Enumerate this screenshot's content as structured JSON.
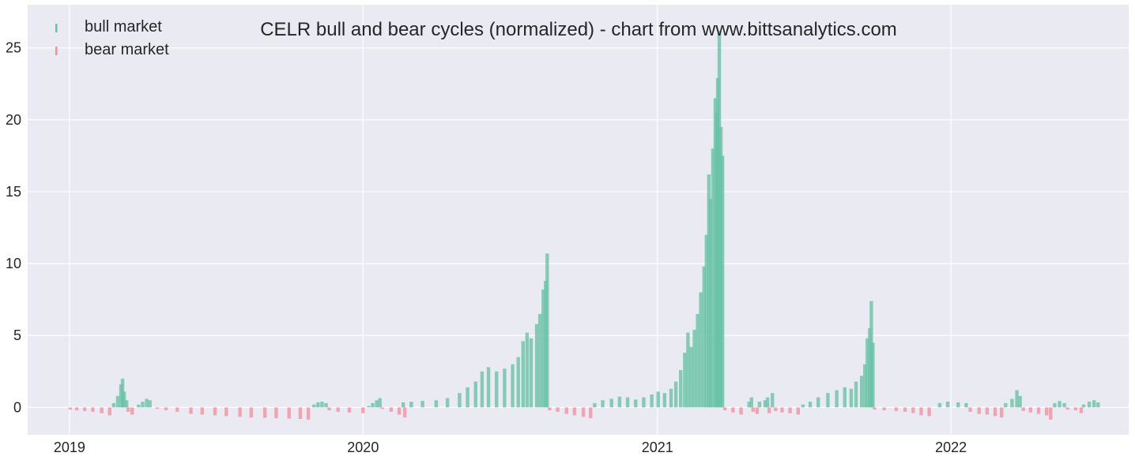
{
  "colors": {
    "bull": "#66c2a5",
    "bear": "#f28e9c",
    "plot_bg": "#eaeaf2",
    "grid": "#ffffff"
  },
  "chart_data": {
    "type": "bar",
    "title": "CELR bull and bear cycles (normalized)  - chart from www.bittsanalytics.com",
    "xlabel": "",
    "ylabel": "",
    "x_range": [
      "2018-11-10",
      "2022-08-10"
    ],
    "ylim": [
      -1.9,
      28
    ],
    "x_ticks": [
      "2019",
      "2020",
      "2021",
      "2022"
    ],
    "y_ticks": [
      0,
      5,
      10,
      15,
      20,
      25
    ],
    "grid": true,
    "legend_position": "top-left",
    "series": [
      {
        "name": "bull market",
        "color": "#66c2a5",
        "points": [
          [
            "2019-02-25",
            0.3
          ],
          [
            "2019-03-02",
            0.8
          ],
          [
            "2019-03-06",
            1.6
          ],
          [
            "2019-03-08",
            2.0
          ],
          [
            "2019-03-10",
            1.1
          ],
          [
            "2019-03-13",
            0.5
          ],
          [
            "2019-03-28",
            0.2
          ],
          [
            "2019-04-02",
            0.4
          ],
          [
            "2019-04-07",
            0.6
          ],
          [
            "2019-04-11",
            0.5
          ],
          [
            "2019-11-01",
            0.2
          ],
          [
            "2019-11-06",
            0.35
          ],
          [
            "2019-11-11",
            0.4
          ],
          [
            "2019-11-16",
            0.3
          ],
          [
            "2020-01-08",
            0.1
          ],
          [
            "2020-01-13",
            0.3
          ],
          [
            "2020-01-18",
            0.5
          ],
          [
            "2020-01-22",
            0.65
          ],
          [
            "2020-02-20",
            0.35
          ],
          [
            "2020-03-01",
            0.4
          ],
          [
            "2020-03-15",
            0.45
          ],
          [
            "2020-04-01",
            0.5
          ],
          [
            "2020-04-15",
            0.65
          ],
          [
            "2020-04-30",
            1.0
          ],
          [
            "2020-05-10",
            1.4
          ],
          [
            "2020-05-20",
            1.8
          ],
          [
            "2020-05-28",
            2.5
          ],
          [
            "2020-06-05",
            2.8
          ],
          [
            "2020-06-15",
            2.5
          ],
          [
            "2020-06-25",
            2.7
          ],
          [
            "2020-07-05",
            3.0
          ],
          [
            "2020-07-12",
            3.5
          ],
          [
            "2020-07-18",
            4.6
          ],
          [
            "2020-07-23",
            5.2
          ],
          [
            "2020-07-28",
            4.8
          ],
          [
            "2020-08-04",
            5.8
          ],
          [
            "2020-08-08",
            6.5
          ],
          [
            "2020-08-12",
            8.2
          ],
          [
            "2020-08-15",
            8.8
          ],
          [
            "2020-08-17",
            10.7
          ],
          [
            "2020-10-15",
            0.3
          ],
          [
            "2020-10-25",
            0.5
          ],
          [
            "2020-11-05",
            0.6
          ],
          [
            "2020-11-15",
            0.75
          ],
          [
            "2020-11-25",
            0.7
          ],
          [
            "2020-12-05",
            0.55
          ],
          [
            "2020-12-15",
            0.7
          ],
          [
            "2020-12-25",
            0.9
          ],
          [
            "2021-01-02",
            1.1
          ],
          [
            "2021-01-10",
            1.0
          ],
          [
            "2021-01-18",
            1.3
          ],
          [
            "2021-01-24",
            1.8
          ],
          [
            "2021-01-30",
            2.6
          ],
          [
            "2021-02-04",
            3.8
          ],
          [
            "2021-02-08",
            5.2
          ],
          [
            "2021-02-12",
            4.2
          ],
          [
            "2021-02-16",
            5.4
          ],
          [
            "2021-02-20",
            6.5
          ],
          [
            "2021-02-24",
            8.0
          ],
          [
            "2021-02-28",
            9.8
          ],
          [
            "2021-03-03",
            12.0
          ],
          [
            "2021-03-06",
            16.2
          ],
          [
            "2021-03-08",
            14.5
          ],
          [
            "2021-03-11",
            18.0
          ],
          [
            "2021-03-14",
            21.5
          ],
          [
            "2021-03-16",
            20.5
          ],
          [
            "2021-03-17",
            22.9
          ],
          [
            "2021-03-19",
            26.2
          ],
          [
            "2021-03-21",
            19.5
          ],
          [
            "2021-03-23",
            17.5
          ],
          [
            "2021-04-25",
            0.4
          ],
          [
            "2021-04-28",
            0.7
          ],
          [
            "2021-05-08",
            0.4
          ],
          [
            "2021-05-15",
            0.5
          ],
          [
            "2021-05-18",
            0.7
          ],
          [
            "2021-05-24",
            1.0
          ],
          [
            "2021-07-01",
            0.2
          ],
          [
            "2021-07-10",
            0.4
          ],
          [
            "2021-07-20",
            0.7
          ],
          [
            "2021-08-01",
            1.0
          ],
          [
            "2021-08-12",
            1.2
          ],
          [
            "2021-08-22",
            1.4
          ],
          [
            "2021-08-30",
            1.3
          ],
          [
            "2021-09-05",
            1.8
          ],
          [
            "2021-09-12",
            2.2
          ],
          [
            "2021-09-16",
            3.0
          ],
          [
            "2021-09-19",
            4.8
          ],
          [
            "2021-09-22",
            5.5
          ],
          [
            "2021-09-24",
            7.4
          ],
          [
            "2021-09-26",
            4.5
          ],
          [
            "2021-12-18",
            0.3
          ],
          [
            "2021-12-28",
            0.4
          ],
          [
            "2022-01-10",
            0.35
          ],
          [
            "2022-01-20",
            0.3
          ],
          [
            "2022-03-10",
            0.3
          ],
          [
            "2022-03-18",
            0.6
          ],
          [
            "2022-03-24",
            1.2
          ],
          [
            "2022-03-28",
            0.8
          ],
          [
            "2022-05-10",
            0.3
          ],
          [
            "2022-05-16",
            0.45
          ],
          [
            "2022-05-22",
            0.3
          ],
          [
            "2022-06-15",
            0.2
          ],
          [
            "2022-06-22",
            0.4
          ],
          [
            "2022-06-28",
            0.5
          ],
          [
            "2022-07-03",
            0.35
          ]
        ]
      },
      {
        "name": "bear market",
        "color": "#f28e9c",
        "points": [
          [
            "2019-01-02",
            -0.15
          ],
          [
            "2019-01-10",
            -0.2
          ],
          [
            "2019-01-20",
            -0.25
          ],
          [
            "2019-01-30",
            -0.3
          ],
          [
            "2019-02-10",
            -0.4
          ],
          [
            "2019-02-20",
            -0.55
          ],
          [
            "2019-03-15",
            -0.3
          ],
          [
            "2019-03-20",
            -0.5
          ],
          [
            "2019-04-20",
            -0.1
          ],
          [
            "2019-05-01",
            -0.2
          ],
          [
            "2019-05-15",
            -0.3
          ],
          [
            "2019-06-01",
            -0.45
          ],
          [
            "2019-06-15",
            -0.5
          ],
          [
            "2019-07-01",
            -0.55
          ],
          [
            "2019-07-15",
            -0.6
          ],
          [
            "2019-08-01",
            -0.65
          ],
          [
            "2019-08-15",
            -0.7
          ],
          [
            "2019-09-01",
            -0.72
          ],
          [
            "2019-09-15",
            -0.75
          ],
          [
            "2019-10-01",
            -0.78
          ],
          [
            "2019-10-15",
            -0.8
          ],
          [
            "2019-10-25",
            -0.85
          ],
          [
            "2019-11-20",
            -0.2
          ],
          [
            "2019-12-01",
            -0.3
          ],
          [
            "2019-12-15",
            -0.35
          ],
          [
            "2020-01-01",
            -0.4
          ],
          [
            "2020-01-25",
            -0.1
          ],
          [
            "2020-02-05",
            -0.3
          ],
          [
            "2020-02-15",
            -0.5
          ],
          [
            "2020-02-22",
            -0.7
          ],
          [
            "2020-08-20",
            -0.2
          ],
          [
            "2020-08-30",
            -0.3
          ],
          [
            "2020-09-10",
            -0.45
          ],
          [
            "2020-09-20",
            -0.55
          ],
          [
            "2020-10-01",
            -0.65
          ],
          [
            "2020-10-10",
            -0.75
          ],
          [
            "2021-03-26",
            -0.2
          ],
          [
            "2021-04-05",
            -0.35
          ],
          [
            "2021-04-15",
            -0.5
          ],
          [
            "2021-04-30",
            -0.3
          ],
          [
            "2021-05-05",
            -0.45
          ],
          [
            "2021-05-20",
            -0.4
          ],
          [
            "2021-05-28",
            -0.25
          ],
          [
            "2021-06-05",
            -0.35
          ],
          [
            "2021-06-15",
            -0.4
          ],
          [
            "2021-06-25",
            -0.5
          ],
          [
            "2021-09-28",
            -0.15
          ],
          [
            "2021-10-10",
            -0.2
          ],
          [
            "2021-10-25",
            -0.25
          ],
          [
            "2021-11-05",
            -0.3
          ],
          [
            "2021-11-15",
            -0.4
          ],
          [
            "2021-11-25",
            -0.55
          ],
          [
            "2021-12-05",
            -0.6
          ],
          [
            "2022-01-25",
            -0.3
          ],
          [
            "2022-02-05",
            -0.45
          ],
          [
            "2022-02-15",
            -0.5
          ],
          [
            "2022-02-25",
            -0.6
          ],
          [
            "2022-03-05",
            -0.7
          ],
          [
            "2022-04-01",
            -0.25
          ],
          [
            "2022-04-10",
            -0.35
          ],
          [
            "2022-04-20",
            -0.45
          ],
          [
            "2022-04-30",
            -0.55
          ],
          [
            "2022-05-05",
            -0.85
          ],
          [
            "2022-05-26",
            -0.15
          ],
          [
            "2022-06-05",
            -0.2
          ],
          [
            "2022-06-12",
            -0.4
          ]
        ]
      }
    ]
  }
}
